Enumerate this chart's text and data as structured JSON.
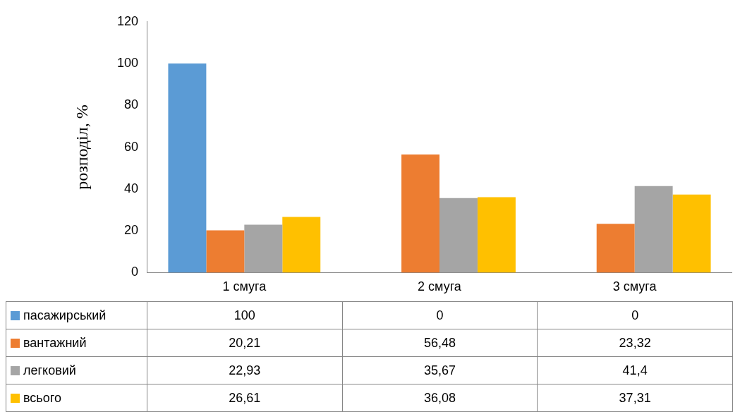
{
  "chart_data": {
    "type": "bar",
    "ylabel": "розподіл, %",
    "categories": [
      "1 смуга",
      "2 смуга",
      "3 смуга"
    ],
    "series": [
      {
        "name": "пасажирський",
        "color": "#5b9bd5",
        "values": [
          100,
          0,
          0
        ],
        "value_labels": [
          "100",
          "0",
          "0"
        ]
      },
      {
        "name": "вантажний",
        "color": "#ed7d31",
        "values": [
          20.21,
          56.48,
          23.32
        ],
        "value_labels": [
          "20,21",
          "56,48",
          "23,32"
        ]
      },
      {
        "name": "легковий",
        "color": "#a5a5a5",
        "values": [
          22.93,
          35.67,
          41.4
        ],
        "value_labels": [
          "22,93",
          "35,67",
          "41,4"
        ]
      },
      {
        "name": "всього",
        "color": "#ffc000",
        "values": [
          26.61,
          36.08,
          37.31
        ],
        "value_labels": [
          "26,61",
          "36,08",
          "37,31"
        ]
      }
    ],
    "ylim": [
      0,
      120
    ],
    "yticks": [
      0,
      20,
      40,
      60,
      80,
      100,
      120
    ],
    "grid": false,
    "legend": "bottom"
  }
}
